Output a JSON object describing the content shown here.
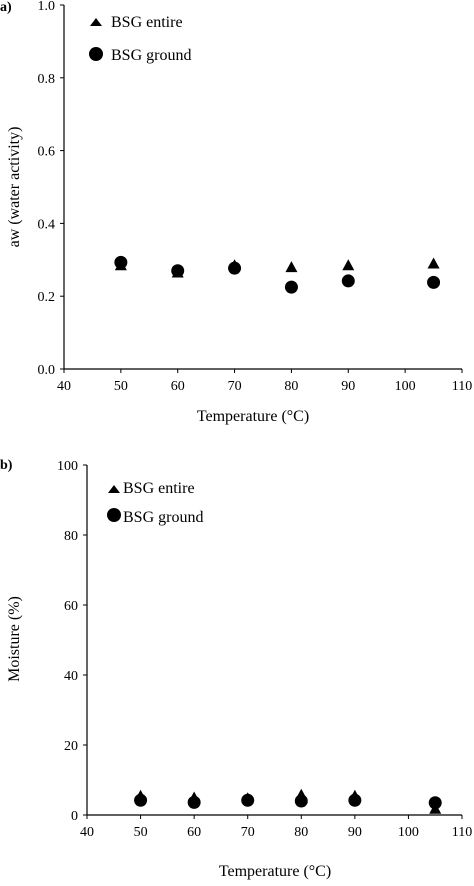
{
  "chart_data": [
    {
      "type": "scatter",
      "panel_label": "a)",
      "title": "",
      "xlabel": "Temperature (°C)",
      "ylabel": "aw (water activity)",
      "xlim": [
        40,
        110
      ],
      "ylim": [
        0,
        1.0
      ],
      "x_ticks": [
        "40",
        "50",
        "60",
        "70",
        "80",
        "90",
        "100",
        "110"
      ],
      "y_ticks": [
        "0.0",
        "0.2",
        "0.4",
        "0.6",
        "0.8",
        "1.0"
      ],
      "grid": false,
      "legend_position": "top-left",
      "series": [
        {
          "name": "BSG entire",
          "marker": "triangle",
          "x": [
            50,
            60,
            70,
            80,
            90,
            105
          ],
          "y": [
            0.285,
            0.265,
            0.285,
            0.28,
            0.285,
            0.29
          ]
        },
        {
          "name": "BSG ground",
          "marker": "circle",
          "x": [
            50,
            60,
            70,
            80,
            90,
            105
          ],
          "y": [
            0.293,
            0.27,
            0.277,
            0.225,
            0.242,
            0.238
          ]
        }
      ]
    },
    {
      "type": "scatter",
      "panel_label": "b)",
      "title": "",
      "xlabel": "Temperature (°C)",
      "ylabel": "Moisture (%)",
      "xlim": [
        40,
        110
      ],
      "ylim": [
        0,
        100
      ],
      "x_ticks": [
        "40",
        "50",
        "60",
        "70",
        "80",
        "90",
        "100",
        "110"
      ],
      "y_ticks": [
        "0",
        "20",
        "40",
        "60",
        "80",
        "100"
      ],
      "grid": false,
      "legend_position": "top-left",
      "series": [
        {
          "name": "BSG entire",
          "marker": "triangle",
          "x": [
            50,
            60,
            70,
            80,
            90,
            105
          ],
          "y": [
            5.5,
            5.0,
            4.8,
            5.8,
            5.5,
            1.8
          ]
        },
        {
          "name": "BSG ground",
          "marker": "circle",
          "x": [
            50,
            60,
            70,
            80,
            90,
            105
          ],
          "y": [
            4.2,
            3.6,
            4.2,
            4.0,
            4.2,
            3.5
          ]
        }
      ]
    }
  ]
}
